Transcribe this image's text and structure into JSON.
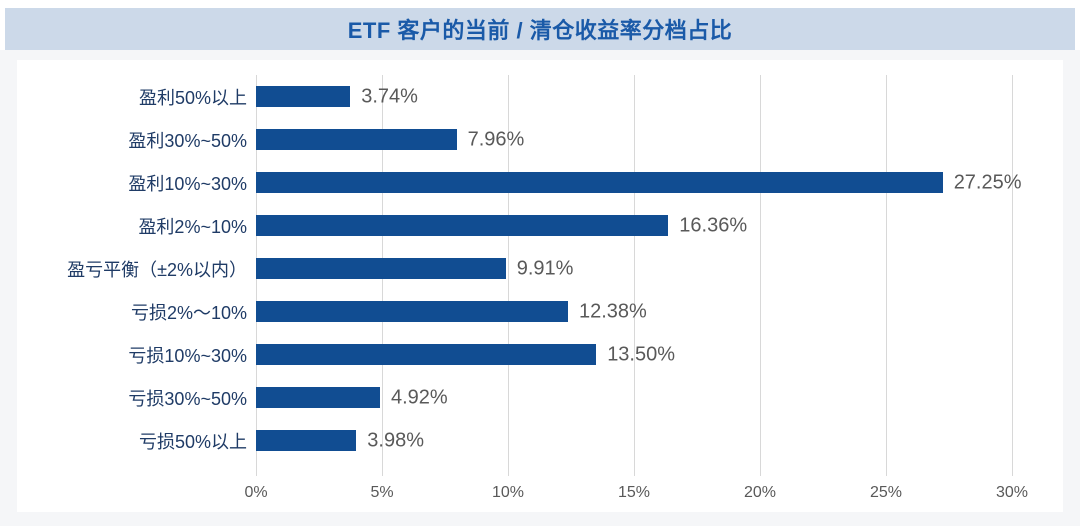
{
  "header": {
    "title": "ETF 客户的当前 / 清仓收益率分档占比"
  },
  "chart_data": {
    "type": "bar",
    "orientation": "horizontal",
    "title": "ETF 客户的当前 / 清仓收益率分档占比",
    "categories": [
      "盈利50%以上",
      "盈利30%~50%",
      "盈利10%~30%",
      "盈利2%~10%",
      "盈亏平衡（±2%以内）",
      "亏损2%～10%",
      "亏损10%~30%",
      "亏损30%~50%",
      "亏损50%以上"
    ],
    "values": [
      3.74,
      7.96,
      27.25,
      16.36,
      9.91,
      12.38,
      13.5,
      4.92,
      3.98
    ],
    "value_labels": [
      "3.74%",
      "7.96%",
      "27.25%",
      "16.36%",
      "9.91%",
      "12.38%",
      "13.50%",
      "4.92%",
      "3.98%"
    ],
    "x_ticks": [
      "0%",
      "5%",
      "10%",
      "15%",
      "20%",
      "25%",
      "30%"
    ],
    "x_tick_values": [
      0,
      5,
      10,
      15,
      20,
      25,
      30
    ],
    "xlim": [
      0,
      30
    ],
    "grid": true,
    "legend": "none",
    "bar_color": "#114d92",
    "gridline_color": "#d8d8d8",
    "category_label_color": "#1f3b66",
    "value_label_color": "#595959",
    "header_bg_color": "#ccd9e9",
    "title_color": "#1a5aa8",
    "page_bg_color": "#f5f6f8"
  }
}
